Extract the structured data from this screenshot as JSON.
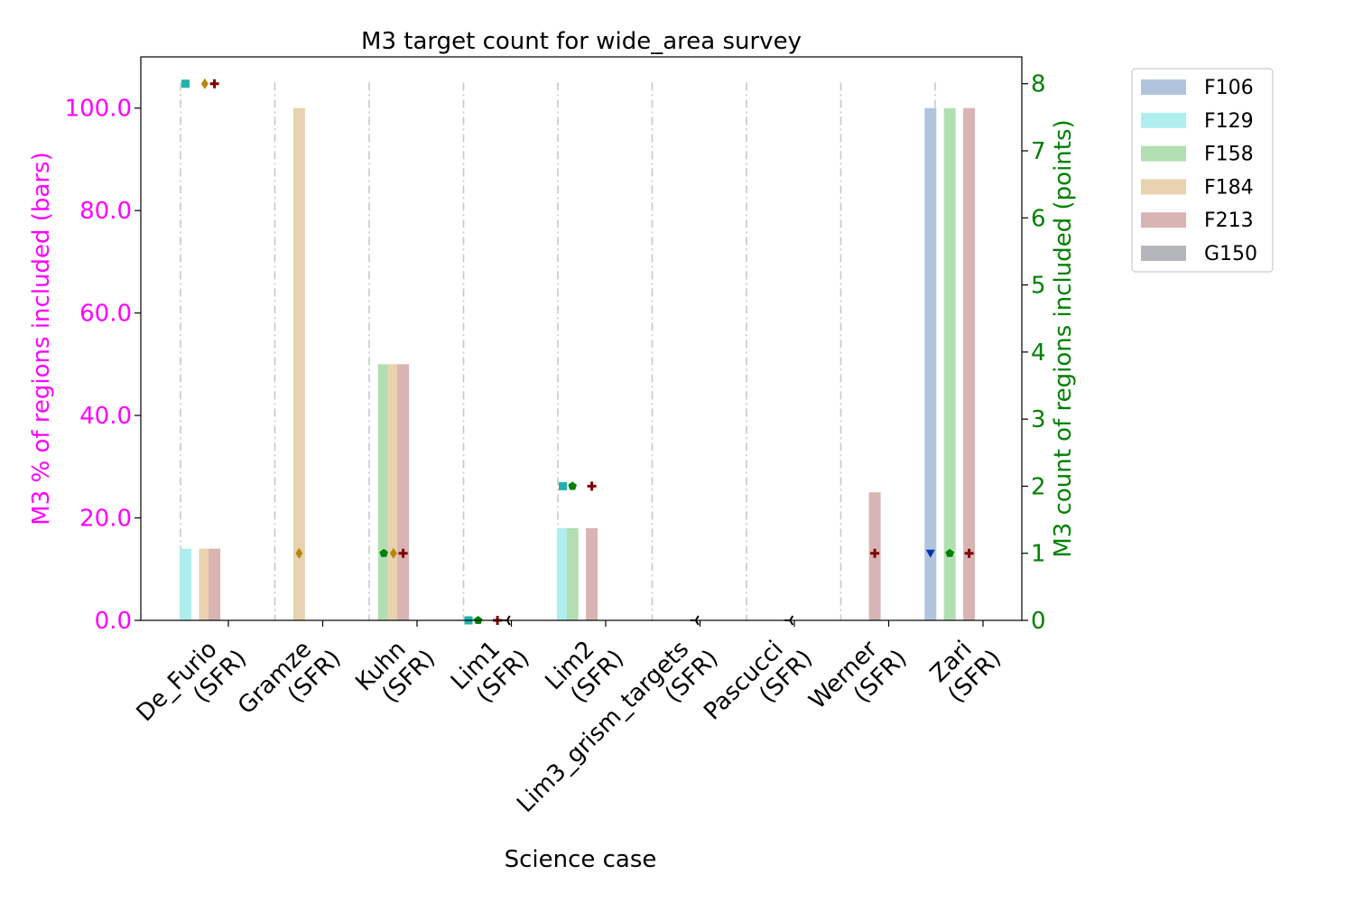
{
  "chart_data": {
    "type": "bar",
    "title": "M3 target count for wide_area survey",
    "xlabel": "Science case",
    "ylabel_left": "M3 % of regions included (bars)",
    "ylabel_right": "M3 count of regions included (points)",
    "left_axis_color": "#ff00ff",
    "right_axis_color": "#008000",
    "ylim_left": [
      0,
      110
    ],
    "ylim_right": [
      0,
      8.4
    ],
    "left_ticks": [
      "0.0",
      "20.0",
      "40.0",
      "60.0",
      "80.0",
      "100.0"
    ],
    "left_tick_values": [
      0,
      20,
      40,
      60,
      80,
      100
    ],
    "right_ticks": [
      "0",
      "1",
      "2",
      "3",
      "4",
      "5",
      "6",
      "7",
      "8"
    ],
    "right_tick_values": [
      0,
      1,
      2,
      3,
      4,
      5,
      6,
      7,
      8
    ],
    "categories": [
      [
        "De_Furio",
        "(SFR)"
      ],
      [
        "Gramze",
        "(SFR)"
      ],
      [
        "Kuhn",
        "(SFR)"
      ],
      [
        "Lim1",
        "(SFR)"
      ],
      [
        "Lim2",
        "(SFR)"
      ],
      [
        "Lim3_grism_targets",
        "(SFR)"
      ],
      [
        "Pascucci",
        "(SFR)"
      ],
      [
        "Werner",
        "(SFR)"
      ],
      [
        "Zari",
        "(SFR)"
      ]
    ],
    "series": [
      {
        "name": "F106",
        "color": "#b0c4de",
        "marker": "triangle-down",
        "marker_color": "#0033aa",
        "values": [
          0,
          0,
          0,
          0,
          0,
          0,
          0,
          0,
          100
        ],
        "counts": [
          null,
          null,
          null,
          null,
          null,
          null,
          null,
          null,
          1
        ]
      },
      {
        "name": "F129",
        "color": "#afeeee",
        "marker": "square",
        "marker_color": "#20b2aa",
        "values": [
          14,
          0,
          0,
          0.5,
          18,
          0,
          0,
          0,
          0
        ],
        "counts": [
          8,
          null,
          null,
          0,
          2,
          null,
          null,
          null,
          null
        ]
      },
      {
        "name": "F158",
        "color": "#b2dfb2",
        "marker": "pentagon",
        "marker_color": "#008000",
        "values": [
          0,
          0,
          50,
          0,
          18,
          0,
          0,
          0,
          100
        ],
        "counts": [
          null,
          null,
          1,
          0,
          2,
          null,
          null,
          null,
          1
        ]
      },
      {
        "name": "F184",
        "color": "#e8d2b0",
        "marker": "diamond",
        "marker_color": "#b8860b",
        "values": [
          14,
          100,
          50,
          0,
          0,
          0,
          0,
          0,
          0
        ],
        "counts": [
          8,
          1,
          1,
          null,
          null,
          null,
          null,
          null,
          null
        ]
      },
      {
        "name": "F213",
        "color": "#d8b4b4",
        "marker": "plus",
        "marker_color": "#800000",
        "values": [
          14,
          0,
          50,
          0,
          18,
          0,
          0,
          25,
          100
        ],
        "counts": [
          8,
          null,
          1,
          0,
          2,
          null,
          null,
          1,
          1
        ]
      },
      {
        "name": "G150",
        "color": "#b4b6ba",
        "marker": "tri-left",
        "marker_color": "#000000",
        "values": [
          0,
          0,
          0,
          0,
          0,
          0,
          0,
          0,
          0
        ],
        "counts": [
          null,
          null,
          null,
          0,
          null,
          0,
          0,
          null,
          null
        ]
      }
    ],
    "legend_position": "outside upper right",
    "grid": "dash-dot vertical lines at category positions"
  }
}
